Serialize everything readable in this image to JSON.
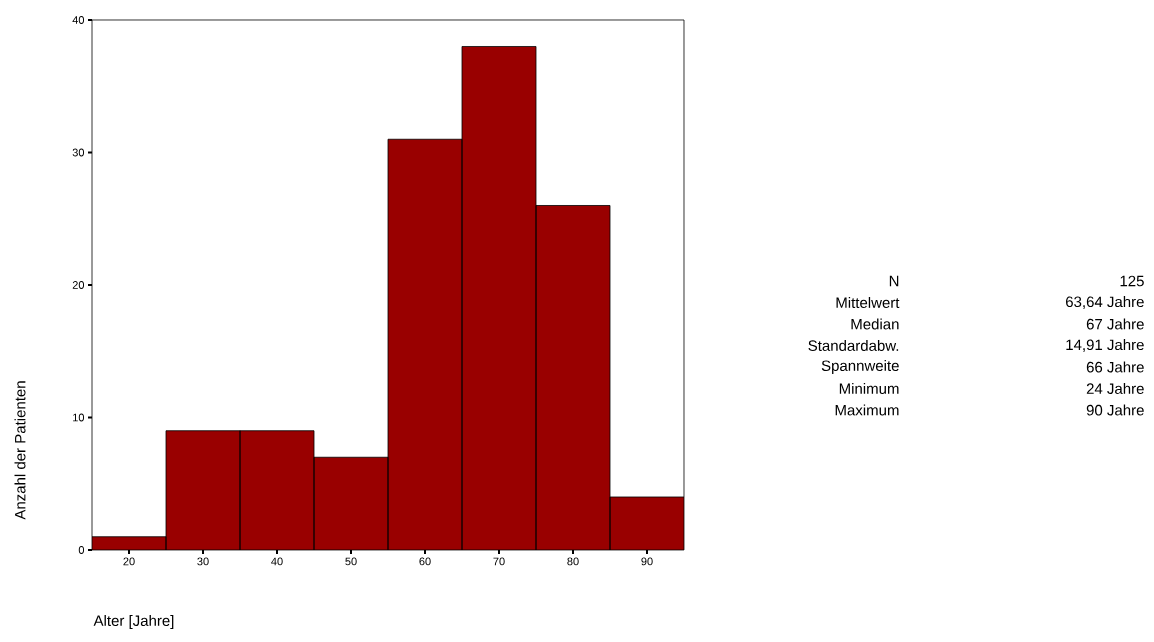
{
  "chart_data": {
    "type": "histogram",
    "xlabel": "Alter [Jahre]",
    "ylabel": "Anzahl der Patienten",
    "bins": [
      15,
      25,
      35,
      45,
      55,
      65,
      75,
      85,
      95
    ],
    "values": [
      1,
      9,
      9,
      7,
      31,
      38,
      26,
      4
    ],
    "color": "#990000",
    "xlim": [
      15,
      95
    ],
    "xticks": [
      20,
      30,
      40,
      50,
      60,
      70,
      80,
      90
    ],
    "ylim": [
      0,
      40
    ],
    "yticks": [
      0,
      10,
      20,
      30,
      40
    ],
    "grid": false,
    "annotations": [
      "N",
      "125",
      "Mittelwert",
      "63,64 Jahre",
      "Median",
      "67 Jahre",
      "Standardabw.",
      "14,91 Jahre",
      "Spannweite",
      "66 Jahre",
      "Minimum",
      "24 Jahre",
      "Maximum",
      "90 Jahre"
    ]
  }
}
